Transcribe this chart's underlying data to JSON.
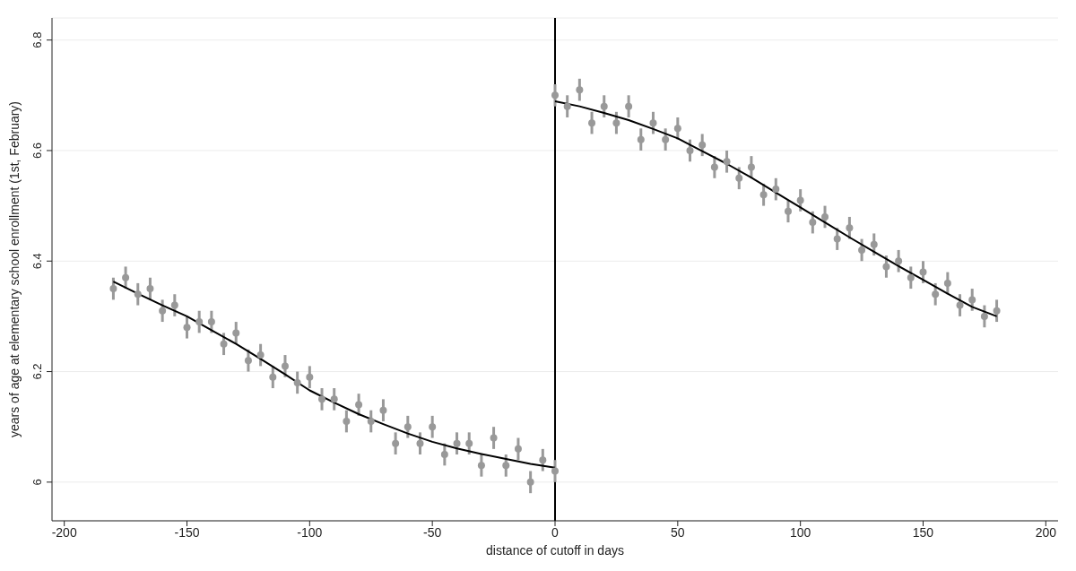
{
  "chart_data": {
    "type": "scatter",
    "xlabel": "distance of cutoff in days",
    "ylabel": "years of age at elementary school enrollment (1st, February)",
    "xlim": [
      -205,
      205
    ],
    "xticks": [
      -200,
      -150,
      -100,
      -50,
      0,
      50,
      100,
      150,
      200
    ],
    "ylim": [
      5.93,
      6.84
    ],
    "yticks": [
      6,
      6.2,
      6.4,
      6.6,
      6.8
    ],
    "grid": "y",
    "ref_lines": [
      {
        "axis": "x",
        "value": 0,
        "color": "#000000"
      }
    ],
    "series": [
      {
        "marker": "circle",
        "color": "#999999",
        "x": [
          -180,
          -175,
          -170,
          -165,
          -160,
          -155,
          -150,
          -145,
          -140,
          -135,
          -130,
          -125,
          -120,
          -115,
          -110,
          -105,
          -100,
          -95,
          -90,
          -85,
          -80,
          -75,
          -70,
          -65,
          -60,
          -55,
          -50,
          -45,
          -40,
          -35,
          -30,
          -25,
          -20,
          -15,
          -10,
          -5,
          0
        ],
        "values": [
          6.35,
          6.37,
          6.34,
          6.35,
          6.31,
          6.32,
          6.28,
          6.29,
          6.29,
          6.25,
          6.27,
          6.22,
          6.23,
          6.19,
          6.21,
          6.18,
          6.19,
          6.15,
          6.15,
          6.11,
          6.14,
          6.11,
          6.13,
          6.07,
          6.1,
          6.07,
          6.1,
          6.05,
          6.07,
          6.07,
          6.03,
          6.08,
          6.03,
          6.06,
          6.0,
          6.04,
          6.02
        ],
        "errors": [
          0.02,
          0.02,
          0.02,
          0.02,
          0.02,
          0.02,
          0.02,
          0.02,
          0.02,
          0.02,
          0.02,
          0.02,
          0.02,
          0.02,
          0.02,
          0.02,
          0.02,
          0.02,
          0.02,
          0.02,
          0.02,
          0.02,
          0.02,
          0.02,
          0.02,
          0.02,
          0.02,
          0.02,
          0.02,
          0.02,
          0.02,
          0.02,
          0.02,
          0.02,
          0.02,
          0.02,
          0.02
        ]
      },
      {
        "marker": "circle",
        "color": "#999999",
        "x": [
          0,
          5,
          10,
          15,
          20,
          25,
          30,
          35,
          40,
          45,
          50,
          55,
          60,
          65,
          70,
          75,
          80,
          85,
          90,
          95,
          100,
          105,
          110,
          115,
          120,
          125,
          130,
          135,
          140,
          145,
          150,
          155,
          160,
          165,
          170,
          175,
          180
        ],
        "values": [
          6.7,
          6.68,
          6.71,
          6.65,
          6.68,
          6.65,
          6.68,
          6.62,
          6.65,
          6.62,
          6.64,
          6.6,
          6.61,
          6.57,
          6.58,
          6.55,
          6.57,
          6.52,
          6.53,
          6.49,
          6.51,
          6.47,
          6.48,
          6.44,
          6.46,
          6.42,
          6.43,
          6.39,
          6.4,
          6.37,
          6.38,
          6.34,
          6.36,
          6.32,
          6.33,
          6.3,
          6.31
        ],
        "errors": [
          0.02,
          0.02,
          0.02,
          0.02,
          0.02,
          0.02,
          0.02,
          0.02,
          0.02,
          0.02,
          0.02,
          0.02,
          0.02,
          0.02,
          0.02,
          0.02,
          0.02,
          0.02,
          0.02,
          0.02,
          0.02,
          0.02,
          0.02,
          0.02,
          0.02,
          0.02,
          0.02,
          0.02,
          0.02,
          0.02,
          0.02,
          0.02,
          0.02,
          0.02,
          0.02,
          0.02,
          0.02
        ]
      },
      {
        "type": "line",
        "marker": "none",
        "color": "#000000",
        "x": [
          -180,
          -170,
          -160,
          -150,
          -140,
          -130,
          -120,
          -110,
          -100,
          -90,
          -80,
          -70,
          -60,
          -50,
          -40,
          -30,
          -20,
          -10,
          0
        ],
        "values": [
          6.363,
          6.341,
          6.32,
          6.3,
          6.275,
          6.25,
          6.223,
          6.195,
          6.166,
          6.144,
          6.123,
          6.105,
          6.088,
          6.073,
          6.061,
          6.051,
          6.042,
          6.033,
          6.026
        ]
      },
      {
        "type": "line",
        "marker": "none",
        "color": "#000000",
        "x": [
          0,
          10,
          20,
          30,
          40,
          50,
          60,
          70,
          80,
          90,
          100,
          110,
          120,
          130,
          140,
          150,
          160,
          170,
          180
        ],
        "values": [
          6.689,
          6.68,
          6.668,
          6.655,
          6.639,
          6.622,
          6.599,
          6.576,
          6.551,
          6.524,
          6.497,
          6.47,
          6.443,
          6.417,
          6.391,
          6.366,
          6.341,
          6.317,
          6.3
        ]
      }
    ]
  }
}
